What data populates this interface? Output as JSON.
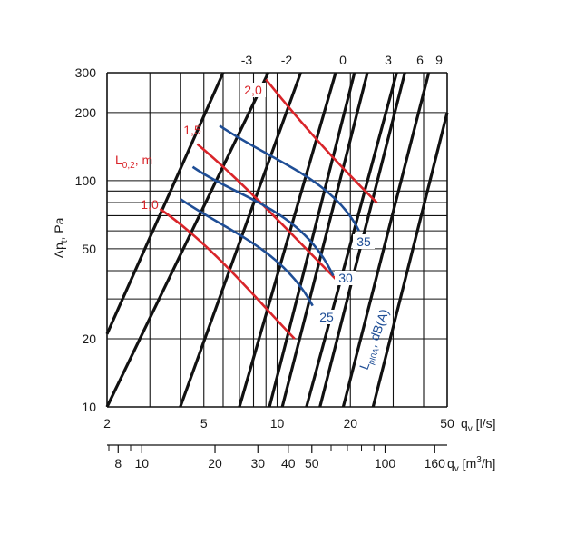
{
  "chart_data": {
    "type": "line",
    "title": "",
    "x_scale": "log",
    "y_scale": "log",
    "xlim": [
      2,
      50
    ],
    "ylim": [
      10,
      300
    ],
    "xlabel_primary": "q_v [l/s]",
    "xlabel_secondary": "q_v [m³/h]",
    "ylabel": "Δp_t, Pa",
    "x_ticks": [
      "2",
      "5",
      "10",
      "20",
      "50"
    ],
    "x2_ticks": [
      "8",
      "10",
      "20",
      "30",
      "40",
      "50",
      "100",
      "160"
    ],
    "y_ticks": [
      "10",
      "20",
      "50",
      "100",
      "200",
      "300"
    ],
    "colors": {
      "black": "#111111",
      "red": "#d9252a",
      "blue": "#1f4e96"
    },
    "system_lines": {
      "labels_top": [
        "-3",
        "-2",
        "0",
        "3",
        "6",
        "9"
      ],
      "series": [
        {
          "x": [
            2.0,
            6.0
          ],
          "y": [
            21,
            300
          ]
        },
        {
          "x": [
            2.0,
            9.2
          ],
          "y": [
            10,
            300
          ]
        },
        {
          "x": [
            4.0,
            12.5
          ],
          "y": [
            10,
            300
          ]
        },
        {
          "x": [
            7.0,
            17.4
          ],
          "y": [
            10,
            300
          ]
        },
        {
          "x": [
            9.3,
            20.8
          ],
          "y": [
            10,
            300
          ]
        },
        {
          "x": [
            10.5,
            23.5
          ],
          "y": [
            10,
            300
          ]
        },
        {
          "x": [
            13.2,
            31.0
          ],
          "y": [
            10,
            300
          ]
        },
        {
          "x": [
            15.0,
            33.5
          ],
          "y": [
            10,
            300
          ]
        },
        {
          "x": [
            18.7,
            42.0
          ],
          "y": [
            10,
            300
          ]
        },
        {
          "x": [
            24.8,
            50.0
          ],
          "y": [
            10,
            200
          ]
        }
      ]
    },
    "throw_curves": {
      "title": "L0,2, m",
      "series": [
        {
          "name": "1,0",
          "x": [
            3.3,
            5.4,
            8.2,
            11.8
          ],
          "y": [
            75,
            52,
            30,
            20
          ]
        },
        {
          "name": "1,5",
          "x": [
            4.7,
            7.5,
            12.0,
            18.2
          ],
          "y": [
            145,
            95,
            55,
            35
          ]
        },
        {
          "name": "2,0",
          "x": [
            9.0,
            12.5,
            17.5,
            25.7
          ],
          "y": [
            280,
            180,
            120,
            80
          ]
        }
      ]
    },
    "sound_curves": {
      "title": "LpI0A, dB(A)",
      "series": [
        {
          "name": "25",
          "x": [
            4.0,
            6.2,
            10.5,
            14.0
          ],
          "y": [
            83,
            60,
            50,
            28
          ]
        },
        {
          "name": "30",
          "x": [
            4.5,
            7.0,
            12.7,
            17.0
          ],
          "y": [
            115,
            83,
            75,
            38
          ]
        },
        {
          "name": "35",
          "x": [
            5.8,
            9.5,
            17.0,
            21.7
          ],
          "y": [
            175,
            122,
            102,
            60
          ]
        }
      ]
    }
  }
}
